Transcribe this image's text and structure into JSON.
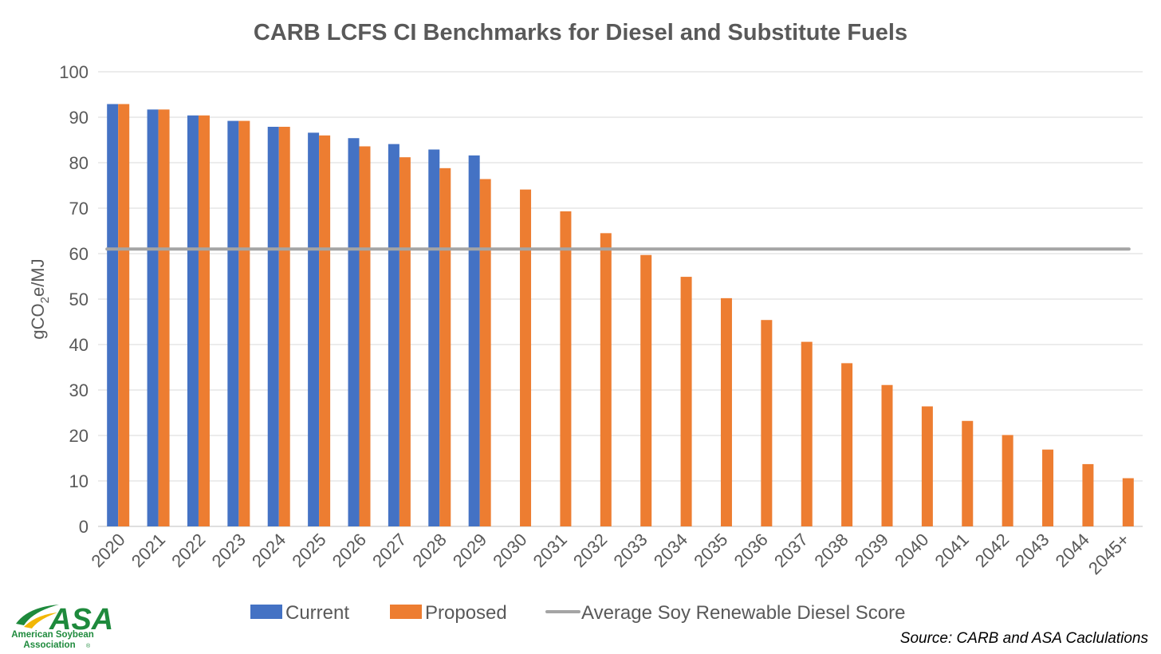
{
  "chart_data": {
    "type": "bar",
    "title": "CARB LCFS CI Benchmarks for Diesel and Substitute Fuels",
    "ylabel": "gCO2e/MJ",
    "ylabel_parts": {
      "prefix": "gCO",
      "subscript": "2",
      "suffix": "e/MJ"
    },
    "xlabel": "",
    "ylim": [
      0,
      100
    ],
    "yticks": [
      0,
      10,
      20,
      30,
      40,
      50,
      60,
      70,
      80,
      90,
      100
    ],
    "grid": true,
    "legend_position": "bottom",
    "categories": [
      "2020",
      "2021",
      "2022",
      "2023",
      "2024",
      "2025",
      "2026",
      "2027",
      "2028",
      "2029",
      "2030",
      "2031",
      "2032",
      "2033",
      "2034",
      "2035",
      "2036",
      "2037",
      "2038",
      "2039",
      "2040",
      "2041",
      "2042",
      "2043",
      "2044",
      "2045+"
    ],
    "series": [
      {
        "name": "Current",
        "kind": "bar",
        "color": "#4472c4",
        "values": [
          92.9,
          91.7,
          90.4,
          89.2,
          87.9,
          86.6,
          85.4,
          84.1,
          82.9,
          81.6,
          null,
          null,
          null,
          null,
          null,
          null,
          null,
          null,
          null,
          null,
          null,
          null,
          null,
          null,
          null,
          null
        ]
      },
      {
        "name": "Proposed",
        "kind": "bar",
        "color": "#ed7d31",
        "values": [
          92.9,
          91.7,
          90.4,
          89.2,
          87.9,
          86.0,
          83.6,
          81.2,
          78.8,
          76.4,
          74.1,
          69.3,
          64.5,
          59.7,
          54.9,
          50.2,
          45.4,
          40.6,
          35.9,
          31.1,
          26.4,
          23.2,
          20.1,
          16.9,
          13.7,
          10.6
        ]
      },
      {
        "name": "Average Soy Renewable Diesel Score",
        "kind": "line",
        "color": "#a5a5a5",
        "values": [
          61,
          61,
          61,
          61,
          61,
          61,
          61,
          61,
          61,
          61,
          61,
          61,
          61,
          61,
          61,
          61,
          61,
          61,
          61,
          61,
          61,
          61,
          61,
          61,
          61,
          61
        ]
      }
    ],
    "annotations": [
      "Source: CARB and ASA Caclulations"
    ]
  },
  "logo": {
    "abbr": "ASA",
    "line1": "American Soybean",
    "line2": "Association",
    "mark": "®",
    "color": "#1e8a3c",
    "accent_color": "#f2b705"
  },
  "source_note": "Source: CARB and ASA Caclulations",
  "colors": {
    "axis_text": "#595959",
    "gridline": "#d9d9d9"
  }
}
